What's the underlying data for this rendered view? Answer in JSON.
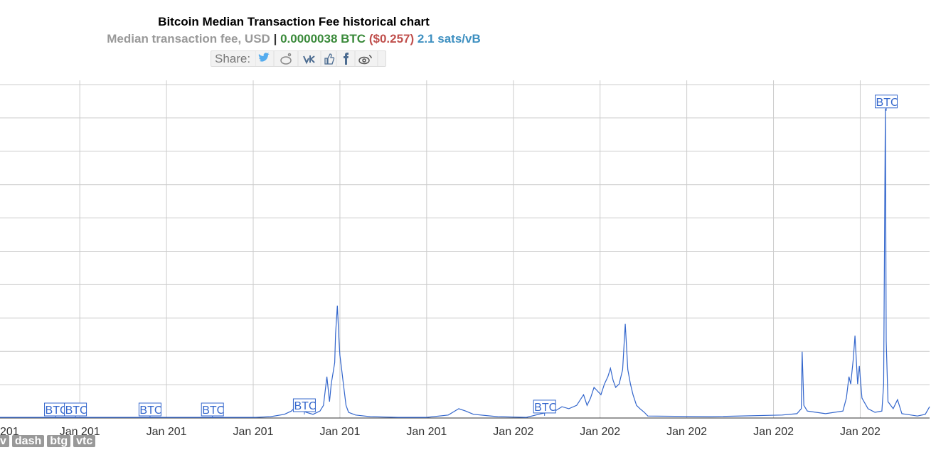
{
  "chart_data": {
    "type": "line",
    "title": "Bitcoin Median Transaction Fee historical chart",
    "subtitle": {
      "metric": "Median transaction fee, USD",
      "separator": "|",
      "btc": "0.0000038 BTC",
      "usd": "($0.257)",
      "sats": "2.1 sats/vB"
    },
    "share_label": "Share:",
    "color": "#3366cc",
    "grid": true,
    "xlim": [
      0.08,
      10.8
    ],
    "xticks": [
      {
        "value": 0,
        "label": "201"
      },
      {
        "value": 1,
        "label": "Jan 201"
      },
      {
        "value": 2,
        "label": "Jan 201"
      },
      {
        "value": 3,
        "label": "Jan 201"
      },
      {
        "value": 4,
        "label": "Jan 201"
      },
      {
        "value": 5,
        "label": "Jan 201"
      },
      {
        "value": 6,
        "label": "Jan 202"
      },
      {
        "value": 7,
        "label": "Jan 202"
      },
      {
        "value": 8,
        "label": "Jan 202"
      },
      {
        "value": 9,
        "label": "Jan 202"
      },
      {
        "value": 10,
        "label": "Jan 202"
      }
    ],
    "ylim": [
      0,
      10
    ],
    "yticks": [
      0,
      1,
      2,
      3,
      4,
      5,
      6,
      7,
      8,
      9,
      10
    ],
    "x": [
      0.08,
      0.9,
      1.72,
      2.54,
      3.03,
      3.2,
      3.36,
      3.44,
      3.49,
      3.53,
      3.61,
      3.69,
      3.77,
      3.81,
      3.85,
      3.88,
      3.9,
      3.94,
      3.95,
      3.97,
      3.99,
      4.0,
      4.02,
      4.04,
      4.07,
      4.1,
      4.18,
      4.35,
      4.67,
      5.0,
      5.25,
      5.37,
      5.45,
      5.54,
      5.82,
      6.15,
      6.32,
      6.48,
      6.56,
      6.64,
      6.73,
      6.81,
      6.85,
      6.89,
      6.93,
      6.97,
      7.01,
      7.05,
      7.09,
      7.12,
      7.15,
      7.18,
      7.22,
      7.26,
      7.29,
      7.32,
      7.35,
      7.38,
      7.42,
      7.46,
      7.51,
      7.55,
      8.28,
      9.1,
      9.27,
      9.32,
      9.33,
      9.35,
      9.39,
      9.6,
      9.8,
      9.84,
      9.87,
      9.89,
      9.92,
      9.94,
      9.97,
      9.99,
      10.02,
      10.09,
      10.17,
      10.25,
      10.27,
      10.29,
      10.3,
      10.32,
      10.38,
      10.43,
      10.48,
      10.66,
      10.75,
      10.8
    ],
    "values": [
      0.02,
      0.02,
      0.02,
      0.02,
      0.02,
      0.04,
      0.11,
      0.21,
      0.34,
      0.28,
      0.17,
      0.11,
      0.21,
      0.38,
      1.24,
      0.49,
      1.02,
      1.66,
      2.52,
      3.37,
      2.3,
      1.88,
      1.45,
      1.02,
      0.38,
      0.17,
      0.09,
      0.04,
      0.02,
      0.02,
      0.09,
      0.28,
      0.21,
      0.11,
      0.04,
      0.02,
      0.13,
      0.21,
      0.34,
      0.28,
      0.38,
      0.7,
      0.38,
      0.6,
      0.92,
      0.81,
      0.7,
      1.02,
      1.24,
      1.49,
      1.13,
      0.92,
      1.02,
      1.45,
      2.82,
      1.45,
      1.02,
      0.7,
      0.38,
      0.28,
      0.17,
      0.06,
      0.04,
      0.09,
      0.13,
      0.28,
      1.99,
      0.38,
      0.21,
      0.13,
      0.21,
      0.6,
      1.24,
      1.02,
      1.77,
      2.47,
      1.02,
      1.56,
      0.6,
      0.28,
      0.17,
      0.21,
      1.02,
      9.28,
      2.3,
      0.49,
      0.28,
      0.55,
      0.13,
      0.06,
      0.11,
      0.34
    ],
    "annotations": [
      {
        "text": "BTC",
        "x": 0.72
      },
      {
        "text": "BTC",
        "x": 0.95
      },
      {
        "text": "BTC",
        "x": 1.81
      },
      {
        "text": "BTC",
        "x": 2.53
      },
      {
        "text": "BTC",
        "x": 3.59
      },
      {
        "text": "BTC",
        "x": 6.36
      },
      {
        "text": "BTC",
        "x": 10.3
      }
    ],
    "coin_tags": [
      "v",
      "dash",
      "btg",
      "vtc"
    ]
  }
}
